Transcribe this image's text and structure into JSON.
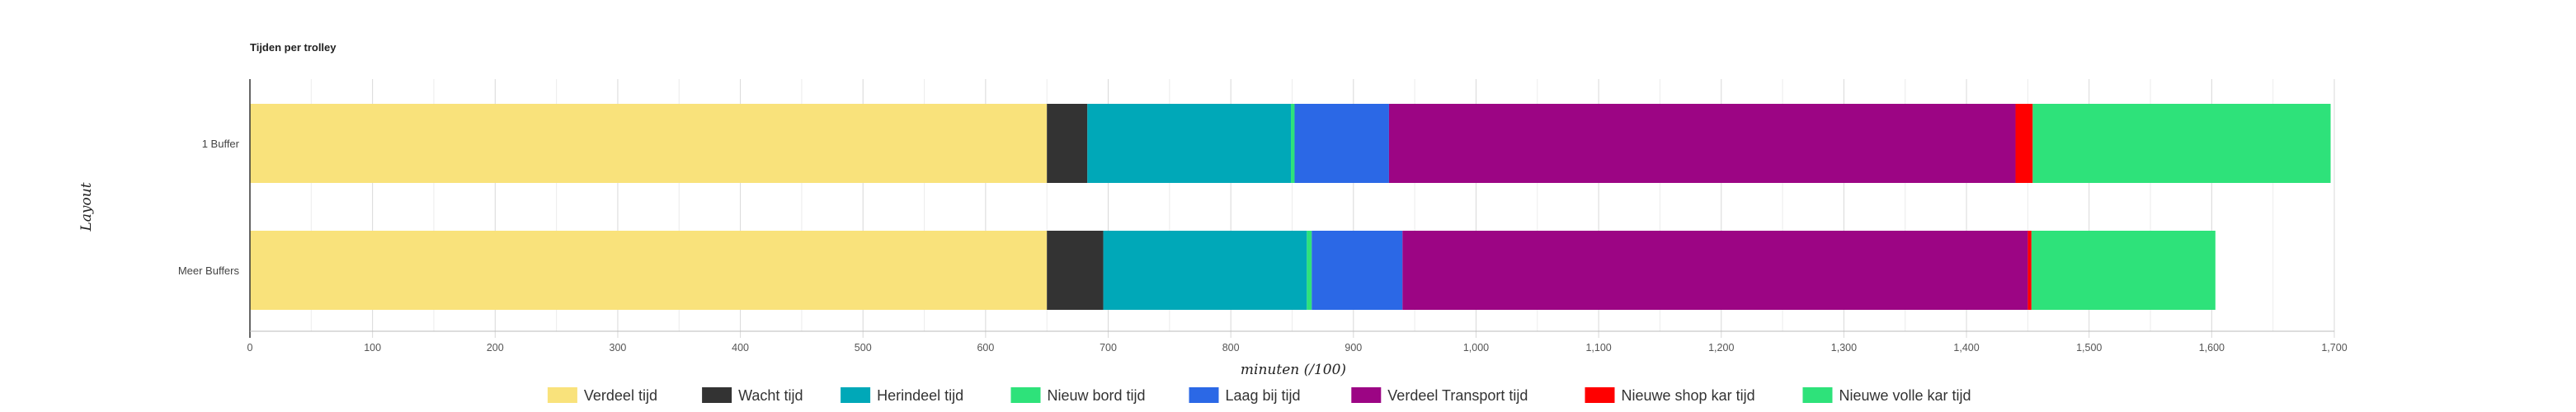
{
  "chart_data": {
    "type": "bar",
    "orientation": "horizontal",
    "stacked": true,
    "title": "Tijden per trolley",
    "xlabel": "minuten (/100)",
    "ylabel": "Layout",
    "xlim": [
      0,
      1700
    ],
    "x_ticks": [
      "0",
      "100",
      "200",
      "300",
      "400",
      "500",
      "600",
      "700",
      "800",
      "900",
      "1,000",
      "1,100",
      "1,200",
      "1,300",
      "1,400",
      "1,500",
      "1,600",
      "1,700"
    ],
    "grid": true,
    "legend_position": "bottom",
    "categories": [
      "1 Buffer",
      "Meer Buffers"
    ],
    "series": [
      {
        "name": "Verdeel tijd",
        "color": "#f9e27b",
        "values": [
          650,
          650
        ]
      },
      {
        "name": "Wacht tijd",
        "color": "#333333",
        "values": [
          33,
          46
        ]
      },
      {
        "name": "Herindeel tijd",
        "color": "#00a8b8",
        "values": [
          166,
          166
        ]
      },
      {
        "name": "Nieuw bord tijd",
        "color": "#2ee27a",
        "values": [
          3,
          4
        ]
      },
      {
        "name": "Laag bij tijd",
        "color": "#2b68e6",
        "values": [
          77,
          74
        ]
      },
      {
        "name": "Verdeel Transport tijd",
        "color": "#9c0584",
        "values": [
          511,
          510
        ]
      },
      {
        "name": "Nieuwe shop kar tijd",
        "color": "#ff0000",
        "values": [
          14,
          3
        ]
      },
      {
        "name": "Nieuwe volle kar tijd",
        "color": "#2ee27a",
        "values": [
          243,
          150
        ]
      }
    ]
  }
}
